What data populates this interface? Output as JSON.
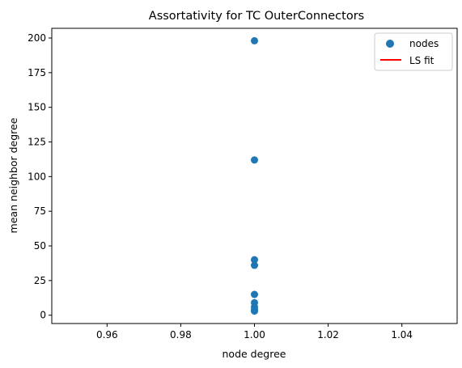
{
  "chart_data": {
    "type": "scatter",
    "title": "Assortativity for TC OuterConnectors",
    "xlabel": "node degree",
    "ylabel": "mean neighbor degree",
    "xlim": [
      0.945,
      1.055
    ],
    "ylim": [
      -6,
      207
    ],
    "xticks": [
      0.96,
      0.98,
      1.0,
      1.02,
      1.04
    ],
    "xtick_labels": [
      "0.96",
      "0.98",
      "1.00",
      "1.02",
      "1.04"
    ],
    "yticks": [
      0,
      25,
      50,
      75,
      100,
      125,
      150,
      175,
      200
    ],
    "ytick_labels": [
      "0",
      "25",
      "50",
      "75",
      "100",
      "125",
      "150",
      "175",
      "200"
    ],
    "grid": false,
    "legend_position": "top-right",
    "series": [
      {
        "name": "nodes",
        "kind": "scatter",
        "color": "#1f77b4",
        "points": [
          {
            "x": 1.0,
            "y": 198
          },
          {
            "x": 1.0,
            "y": 112
          },
          {
            "x": 1.0,
            "y": 40
          },
          {
            "x": 1.0,
            "y": 36
          },
          {
            "x": 1.0,
            "y": 15
          },
          {
            "x": 1.0,
            "y": 9
          },
          {
            "x": 1.0,
            "y": 6
          },
          {
            "x": 1.0,
            "y": 4
          },
          {
            "x": 1.0,
            "y": 3
          }
        ]
      },
      {
        "name": "LS fit",
        "kind": "line",
        "color": "#ff0000",
        "points": []
      }
    ]
  }
}
